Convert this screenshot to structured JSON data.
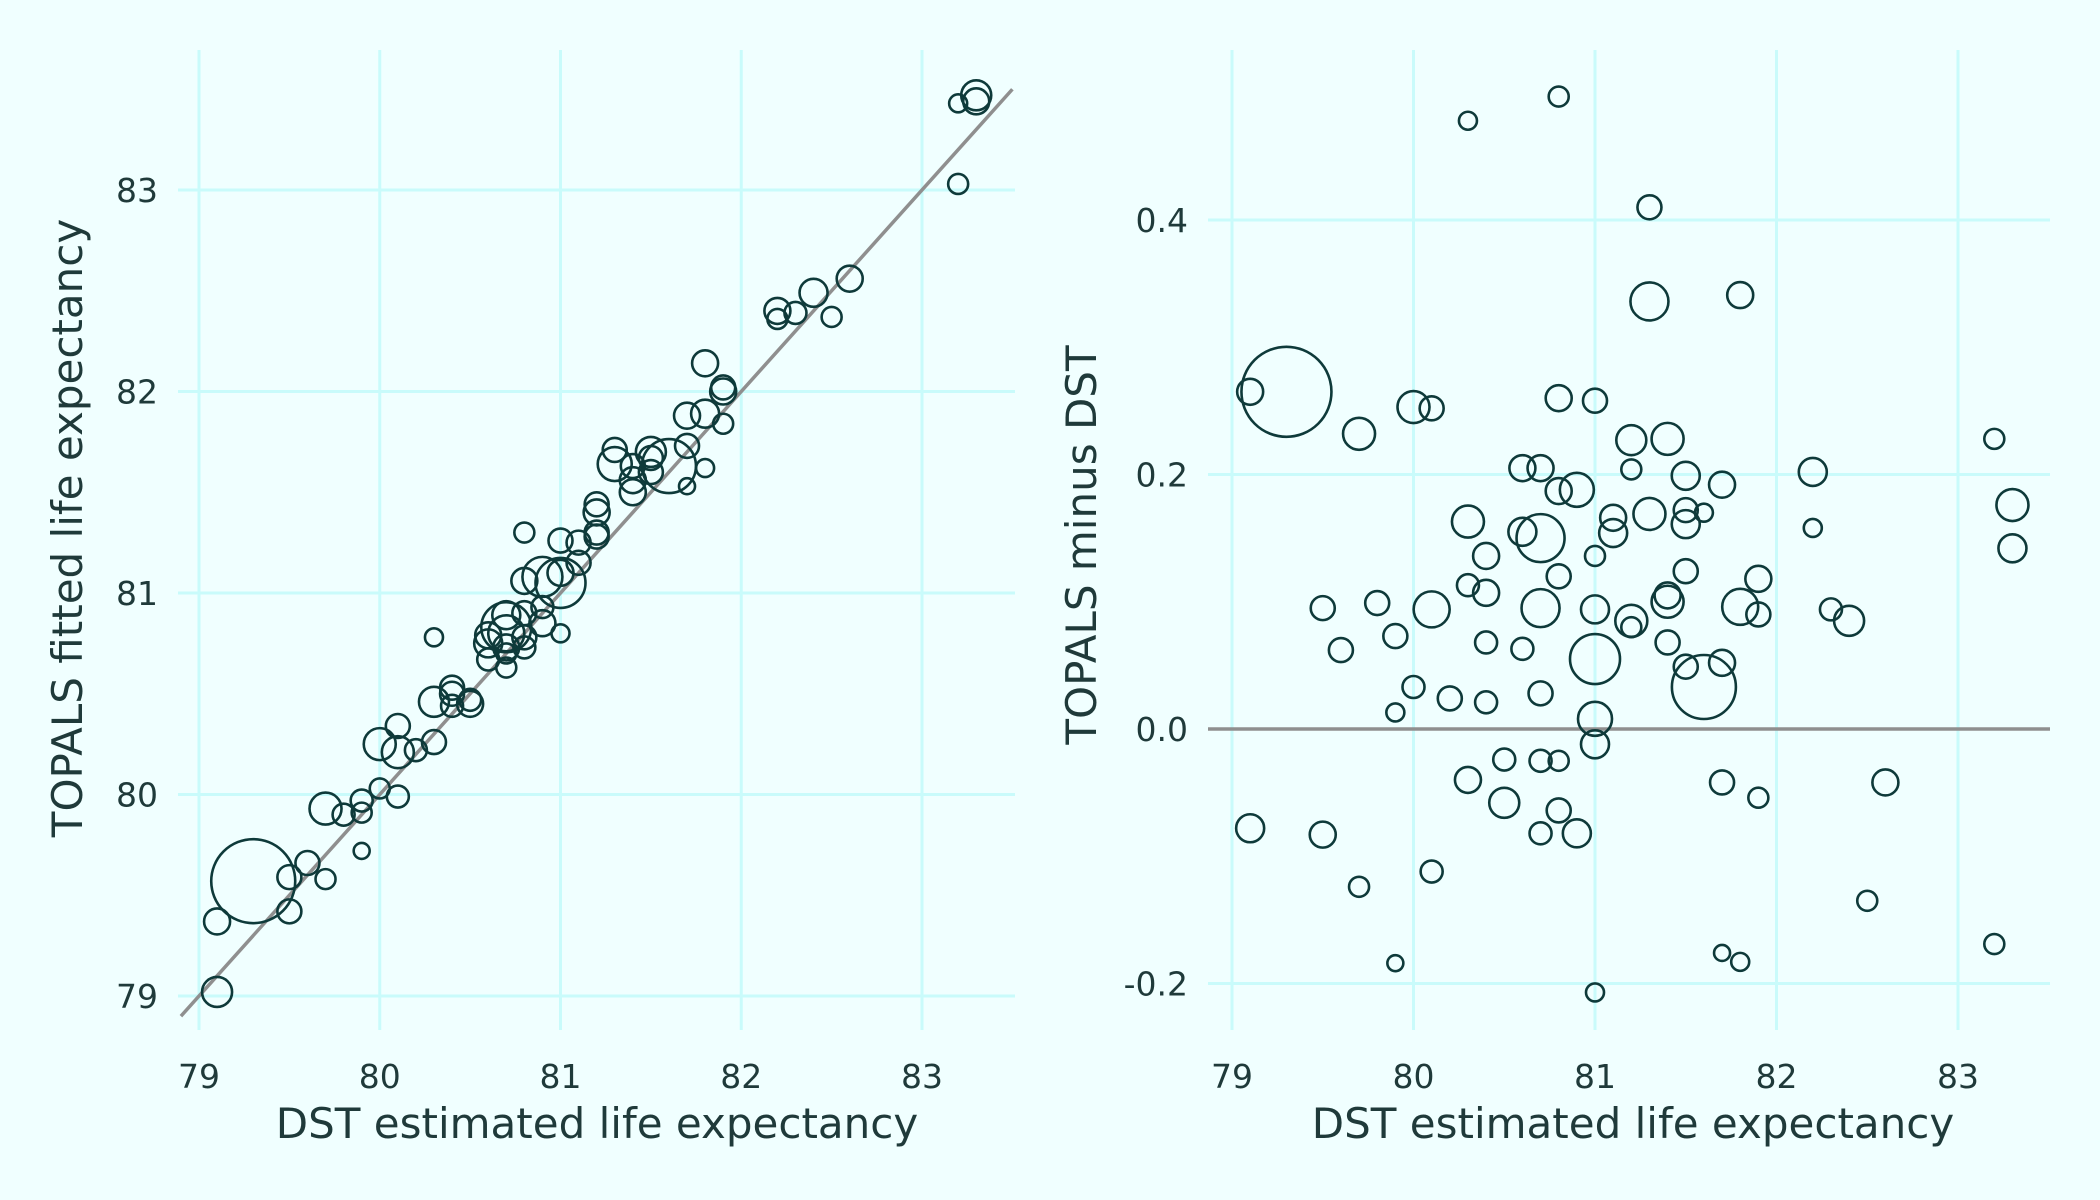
{
  "chart_data": [
    {
      "type": "scatter",
      "title": "",
      "xlabel": "DST estimated life expectancy",
      "ylabel": "TOPALS fitted life expectancy",
      "xlim": [
        78.9,
        83.5
      ],
      "ylim": [
        78.9,
        83.55
      ],
      "xticks": [
        "79",
        "80",
        "81",
        "82",
        "83"
      ],
      "yticks": [
        "79",
        "80",
        "81",
        "82",
        "83"
      ],
      "grid": true,
      "reference_line": "y = x",
      "marker": "open circle, size proportional to population",
      "points": [
        {
          "x": 79.1,
          "y": 79.02,
          "r": 15
        },
        {
          "x": 79.3,
          "y": 79.57,
          "r": 42
        },
        {
          "x": 79.1,
          "y": 79.37,
          "r": 13
        },
        {
          "x": 79.5,
          "y": 79.59,
          "r": 12
        },
        {
          "x": 79.6,
          "y": 79.66,
          "r": 12
        },
        {
          "x": 79.5,
          "y": 79.42,
          "r": 12
        },
        {
          "x": 79.7,
          "y": 79.58,
          "r": 10
        },
        {
          "x": 79.7,
          "y": 79.93,
          "r": 16
        },
        {
          "x": 79.8,
          "y": 79.9,
          "r": 11
        },
        {
          "x": 79.9,
          "y": 79.97,
          "r": 11
        },
        {
          "x": 79.9,
          "y": 79.91,
          "r": 10
        },
        {
          "x": 79.9,
          "y": 79.72,
          "r": 8
        },
        {
          "x": 80.0,
          "y": 80.25,
          "r": 16
        },
        {
          "x": 80.1,
          "y": 80.34,
          "r": 12
        },
        {
          "x": 80.1,
          "y": 80.21,
          "r": 16
        },
        {
          "x": 80.0,
          "y": 80.03,
          "r": 10
        },
        {
          "x": 80.1,
          "y": 79.99,
          "r": 11
        },
        {
          "x": 80.2,
          "y": 80.22,
          "r": 11
        },
        {
          "x": 80.3,
          "y": 80.26,
          "r": 12
        },
        {
          "x": 80.3,
          "y": 80.46,
          "r": 15
        },
        {
          "x": 80.3,
          "y": 80.78,
          "r": 9
        },
        {
          "x": 80.4,
          "y": 80.5,
          "r": 12
        },
        {
          "x": 80.4,
          "y": 80.44,
          "r": 11
        },
        {
          "x": 80.4,
          "y": 80.53,
          "r": 12
        },
        {
          "x": 80.5,
          "y": 80.45,
          "r": 13
        },
        {
          "x": 80.5,
          "y": 80.47,
          "r": 11
        },
        {
          "x": 80.6,
          "y": 80.67,
          "r": 11
        },
        {
          "x": 80.6,
          "y": 80.75,
          "r": 14
        },
        {
          "x": 80.6,
          "y": 80.79,
          "r": 13
        },
        {
          "x": 80.7,
          "y": 80.73,
          "r": 13
        },
        {
          "x": 80.7,
          "y": 80.7,
          "r": 10
        },
        {
          "x": 80.7,
          "y": 80.63,
          "r": 10
        },
        {
          "x": 80.7,
          "y": 80.89,
          "r": 14
        },
        {
          "x": 80.7,
          "y": 80.83,
          "r": 25
        },
        {
          "x": 80.7,
          "y": 80.8,
          "r": 18
        },
        {
          "x": 80.8,
          "y": 80.78,
          "r": 12
        },
        {
          "x": 80.8,
          "y": 80.73,
          "r": 11
        },
        {
          "x": 80.8,
          "y": 80.9,
          "r": 12
        },
        {
          "x": 80.8,
          "y": 81.06,
          "r": 13
        },
        {
          "x": 80.8,
          "y": 81.3,
          "r": 10
        },
        {
          "x": 80.9,
          "y": 80.85,
          "r": 13
        },
        {
          "x": 80.9,
          "y": 80.93,
          "r": 11
        },
        {
          "x": 80.9,
          "y": 81.08,
          "r": 20
        },
        {
          "x": 81.0,
          "y": 81.05,
          "r": 25
        },
        {
          "x": 81.0,
          "y": 80.8,
          "r": 9
        },
        {
          "x": 81.0,
          "y": 81.1,
          "r": 13
        },
        {
          "x": 81.0,
          "y": 81.26,
          "r": 12
        },
        {
          "x": 81.1,
          "y": 81.15,
          "r": 12
        },
        {
          "x": 81.1,
          "y": 81.25,
          "r": 12
        },
        {
          "x": 81.2,
          "y": 81.3,
          "r": 12
        },
        {
          "x": 81.2,
          "y": 81.28,
          "r": 12
        },
        {
          "x": 81.2,
          "y": 81.4,
          "r": 13
        },
        {
          "x": 81.2,
          "y": 81.44,
          "r": 12
        },
        {
          "x": 81.3,
          "y": 81.71,
          "r": 12
        },
        {
          "x": 81.3,
          "y": 81.64,
          "r": 17
        },
        {
          "x": 81.4,
          "y": 81.5,
          "r": 13
        },
        {
          "x": 81.4,
          "y": 81.56,
          "r": 13
        },
        {
          "x": 81.4,
          "y": 81.63,
          "r": 12
        },
        {
          "x": 81.5,
          "y": 81.6,
          "r": 12
        },
        {
          "x": 81.5,
          "y": 81.7,
          "r": 15
        },
        {
          "x": 81.5,
          "y": 81.67,
          "r": 12
        },
        {
          "x": 81.6,
          "y": 81.63,
          "r": 27
        },
        {
          "x": 81.7,
          "y": 81.73,
          "r": 12
        },
        {
          "x": 81.7,
          "y": 81.88,
          "r": 13
        },
        {
          "x": 81.7,
          "y": 81.53,
          "r": 8
        },
        {
          "x": 81.8,
          "y": 81.89,
          "r": 14
        },
        {
          "x": 81.8,
          "y": 81.62,
          "r": 9
        },
        {
          "x": 81.8,
          "y": 82.14,
          "r": 13
        },
        {
          "x": 81.9,
          "y": 82.0,
          "r": 13
        },
        {
          "x": 81.9,
          "y": 82.02,
          "r": 12
        },
        {
          "x": 81.9,
          "y": 81.84,
          "r": 10
        },
        {
          "x": 82.2,
          "y": 82.4,
          "r": 13
        },
        {
          "x": 82.2,
          "y": 82.36,
          "r": 10
        },
        {
          "x": 82.3,
          "y": 82.39,
          "r": 11
        },
        {
          "x": 82.4,
          "y": 82.49,
          "r": 14
        },
        {
          "x": 82.5,
          "y": 82.37,
          "r": 10
        },
        {
          "x": 82.6,
          "y": 82.56,
          "r": 13
        },
        {
          "x": 83.2,
          "y": 83.03,
          "r": 10
        },
        {
          "x": 83.2,
          "y": 83.43,
          "r": 9
        },
        {
          "x": 83.3,
          "y": 83.47,
          "r": 15
        },
        {
          "x": 83.3,
          "y": 83.44,
          "r": 13
        }
      ]
    },
    {
      "type": "scatter",
      "title": "",
      "xlabel": "DST estimated life expectancy",
      "ylabel": "TOPALS minus DST",
      "xlim": [
        78.9,
        83.5
      ],
      "ylim": [
        -0.25,
        0.53
      ],
      "xticks": [
        "79",
        "80",
        "81",
        "82",
        "83"
      ],
      "yticks": [
        "-0.2",
        "0.0",
        "0.2",
        "0.4"
      ],
      "grid": true,
      "reference_line": "y = 0",
      "marker": "open circle, size proportional to population",
      "points": [
        {
          "x": 79.1,
          "y": -0.078,
          "r": 14
        },
        {
          "x": 79.3,
          "y": 0.265,
          "r": 45
        },
        {
          "x": 79.1,
          "y": 0.265,
          "r": 13
        },
        {
          "x": 79.5,
          "y": 0.095,
          "r": 12
        },
        {
          "x": 79.5,
          "y": -0.083,
          "r": 13
        },
        {
          "x": 79.6,
          "y": 0.062,
          "r": 12
        },
        {
          "x": 79.7,
          "y": 0.232,
          "r": 16
        },
        {
          "x": 79.7,
          "y": -0.124,
          "r": 10
        },
        {
          "x": 79.8,
          "y": 0.099,
          "r": 12
        },
        {
          "x": 79.9,
          "y": 0.073,
          "r": 12
        },
        {
          "x": 79.9,
          "y": 0.013,
          "r": 9
        },
        {
          "x": 79.9,
          "y": -0.184,
          "r": 8
        },
        {
          "x": 80.0,
          "y": 0.253,
          "r": 16
        },
        {
          "x": 80.0,
          "y": 0.033,
          "r": 11
        },
        {
          "x": 80.1,
          "y": 0.252,
          "r": 12
        },
        {
          "x": 80.1,
          "y": 0.094,
          "r": 18
        },
        {
          "x": 80.1,
          "y": -0.112,
          "r": 11
        },
        {
          "x": 80.2,
          "y": 0.024,
          "r": 12
        },
        {
          "x": 80.3,
          "y": 0.163,
          "r": 16
        },
        {
          "x": 80.3,
          "y": 0.113,
          "r": 11
        },
        {
          "x": 80.3,
          "y": -0.04,
          "r": 13
        },
        {
          "x": 80.4,
          "y": 0.136,
          "r": 13
        },
        {
          "x": 80.4,
          "y": 0.107,
          "r": 13
        },
        {
          "x": 80.4,
          "y": 0.068,
          "r": 11
        },
        {
          "x": 80.4,
          "y": 0.021,
          "r": 11
        },
        {
          "x": 80.5,
          "y": -0.024,
          "r": 11
        },
        {
          "x": 80.5,
          "y": -0.058,
          "r": 15
        },
        {
          "x": 80.6,
          "y": 0.205,
          "r": 13
        },
        {
          "x": 80.6,
          "y": 0.155,
          "r": 14
        },
        {
          "x": 80.6,
          "y": 0.063,
          "r": 11
        },
        {
          "x": 80.7,
          "y": 0.15,
          "r": 24
        },
        {
          "x": 80.7,
          "y": 0.205,
          "r": 13
        },
        {
          "x": 80.7,
          "y": 0.095,
          "r": 19
        },
        {
          "x": 80.7,
          "y": 0.028,
          "r": 12
        },
        {
          "x": 80.7,
          "y": -0.025,
          "r": 11
        },
        {
          "x": 80.7,
          "y": -0.082,
          "r": 11
        },
        {
          "x": 80.8,
          "y": 0.497,
          "r": 10
        },
        {
          "x": 80.8,
          "y": 0.26,
          "r": 13
        },
        {
          "x": 80.8,
          "y": 0.187,
          "r": 13
        },
        {
          "x": 80.8,
          "y": 0.12,
          "r": 12
        },
        {
          "x": 80.8,
          "y": -0.025,
          "r": 10
        },
        {
          "x": 80.8,
          "y": -0.064,
          "r": 12
        },
        {
          "x": 80.9,
          "y": 0.188,
          "r": 17
        },
        {
          "x": 80.9,
          "y": -0.082,
          "r": 14
        },
        {
          "x": 80.3,
          "y": 0.478,
          "r": 9
        },
        {
          "x": 81.0,
          "y": 0.258,
          "r": 12
        },
        {
          "x": 81.0,
          "y": 0.136,
          "r": 10
        },
        {
          "x": 81.0,
          "y": 0.094,
          "r": 14
        },
        {
          "x": 81.0,
          "y": 0.055,
          "r": 25
        },
        {
          "x": 81.0,
          "y": 0.008,
          "r": 17
        },
        {
          "x": 81.0,
          "y": -0.012,
          "r": 14
        },
        {
          "x": 81.0,
          "y": -0.207,
          "r": 9
        },
        {
          "x": 81.1,
          "y": 0.166,
          "r": 13
        },
        {
          "x": 81.1,
          "y": 0.154,
          "r": 14
        },
        {
          "x": 81.2,
          "y": 0.227,
          "r": 15
        },
        {
          "x": 81.2,
          "y": 0.204,
          "r": 10
        },
        {
          "x": 81.2,
          "y": 0.085,
          "r": 16
        },
        {
          "x": 81.2,
          "y": 0.08,
          "r": 10
        },
        {
          "x": 81.3,
          "y": 0.41,
          "r": 12
        },
        {
          "x": 81.3,
          "y": 0.336,
          "r": 19
        },
        {
          "x": 81.3,
          "y": 0.169,
          "r": 16
        },
        {
          "x": 81.4,
          "y": 0.228,
          "r": 16
        },
        {
          "x": 81.4,
          "y": 0.105,
          "r": 13
        },
        {
          "x": 81.4,
          "y": 0.1,
          "r": 16
        },
        {
          "x": 81.4,
          "y": 0.068,
          "r": 12
        },
        {
          "x": 81.5,
          "y": 0.199,
          "r": 14
        },
        {
          "x": 81.5,
          "y": 0.172,
          "r": 12
        },
        {
          "x": 81.5,
          "y": 0.161,
          "r": 14
        },
        {
          "x": 81.5,
          "y": 0.124,
          "r": 12
        },
        {
          "x": 81.5,
          "y": 0.049,
          "r": 12
        },
        {
          "x": 81.6,
          "y": 0.17,
          "r": 9
        },
        {
          "x": 81.6,
          "y": 0.033,
          "r": 32
        },
        {
          "x": 81.7,
          "y": 0.192,
          "r": 13
        },
        {
          "x": 81.7,
          "y": 0.052,
          "r": 13
        },
        {
          "x": 81.7,
          "y": -0.042,
          "r": 12
        },
        {
          "x": 81.7,
          "y": -0.176,
          "r": 8
        },
        {
          "x": 81.8,
          "y": 0.341,
          "r": 13
        },
        {
          "x": 81.8,
          "y": 0.096,
          "r": 18
        },
        {
          "x": 81.8,
          "y": -0.183,
          "r": 9
        },
        {
          "x": 81.9,
          "y": 0.118,
          "r": 13
        },
        {
          "x": 81.9,
          "y": 0.09,
          "r": 12
        },
        {
          "x": 81.9,
          "y": -0.054,
          "r": 10
        },
        {
          "x": 82.2,
          "y": 0.202,
          "r": 14
        },
        {
          "x": 82.2,
          "y": 0.158,
          "r": 9
        },
        {
          "x": 82.3,
          "y": 0.094,
          "r": 11
        },
        {
          "x": 82.4,
          "y": 0.085,
          "r": 15
        },
        {
          "x": 82.5,
          "y": -0.135,
          "r": 10
        },
        {
          "x": 82.6,
          "y": -0.042,
          "r": 13
        },
        {
          "x": 83.2,
          "y": 0.228,
          "r": 10
        },
        {
          "x": 83.2,
          "y": -0.169,
          "r": 10
        },
        {
          "x": 83.3,
          "y": 0.176,
          "r": 16
        },
        {
          "x": 83.3,
          "y": 0.142,
          "r": 14
        }
      ]
    }
  ]
}
